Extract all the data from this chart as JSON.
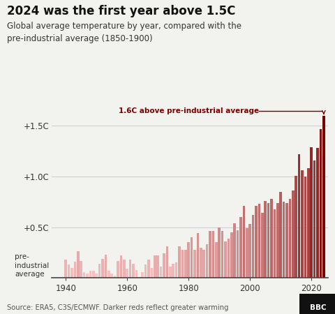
{
  "title": "2024 was the first year above 1.5C",
  "subtitle": "Global average temperature by year, compared with the\npre-industrial average (1850-1900)",
  "source": "Source: ERA5, C3S/ECMWF. Darker reds reflect greater warming",
  "annotation": "1.6C above pre-industrial average",
  "years": [
    1940,
    1941,
    1942,
    1943,
    1944,
    1945,
    1946,
    1947,
    1948,
    1949,
    1950,
    1951,
    1952,
    1953,
    1954,
    1955,
    1956,
    1957,
    1958,
    1959,
    1960,
    1961,
    1962,
    1963,
    1964,
    1965,
    1966,
    1967,
    1968,
    1969,
    1970,
    1971,
    1972,
    1973,
    1974,
    1975,
    1976,
    1977,
    1978,
    1979,
    1980,
    1981,
    1982,
    1983,
    1984,
    1985,
    1986,
    1987,
    1988,
    1989,
    1990,
    1991,
    1992,
    1993,
    1994,
    1995,
    1996,
    1997,
    1998,
    1999,
    2000,
    2001,
    2002,
    2003,
    2004,
    2005,
    2006,
    2007,
    2008,
    2009,
    2010,
    2011,
    2012,
    2013,
    2014,
    2015,
    2016,
    2017,
    2018,
    2019,
    2020,
    2021,
    2022,
    2023,
    2024
  ],
  "values": [
    0.18,
    0.13,
    0.1,
    0.16,
    0.26,
    0.17,
    0.06,
    0.04,
    0.07,
    0.07,
    0.04,
    0.14,
    0.19,
    0.23,
    0.07,
    0.04,
    0.02,
    0.17,
    0.22,
    0.18,
    0.09,
    0.18,
    0.14,
    0.08,
    0.01,
    0.06,
    0.13,
    0.18,
    0.1,
    0.22,
    0.22,
    0.11,
    0.24,
    0.31,
    0.11,
    0.14,
    0.15,
    0.31,
    0.28,
    0.28,
    0.35,
    0.4,
    0.28,
    0.44,
    0.3,
    0.28,
    0.33,
    0.46,
    0.46,
    0.35,
    0.5,
    0.46,
    0.36,
    0.39,
    0.45,
    0.54,
    0.47,
    0.6,
    0.71,
    0.49,
    0.53,
    0.62,
    0.71,
    0.73,
    0.64,
    0.76,
    0.74,
    0.78,
    0.68,
    0.74,
    0.85,
    0.75,
    0.74,
    0.78,
    0.86,
    1.01,
    1.22,
    1.06,
    1.0,
    1.08,
    1.29,
    1.16,
    1.28,
    1.47,
    1.6
  ],
  "ytick_labels": [
    "+1.5C",
    "+1.0C",
    "+0.5C"
  ],
  "ytick_values": [
    1.5,
    1.0,
    0.5
  ],
  "ymax": 1.72,
  "xmin": 1935.5,
  "xmax": 2025.5,
  "bg_color": "#f2f2ee",
  "bar_color_min": "#f9c8c8",
  "bar_color_max": "#7a0000",
  "title_color": "#111111",
  "subtitle_color": "#333333",
  "axis_label_color": "#333333",
  "source_color": "#555555",
  "annotation_color": "#7a0000"
}
